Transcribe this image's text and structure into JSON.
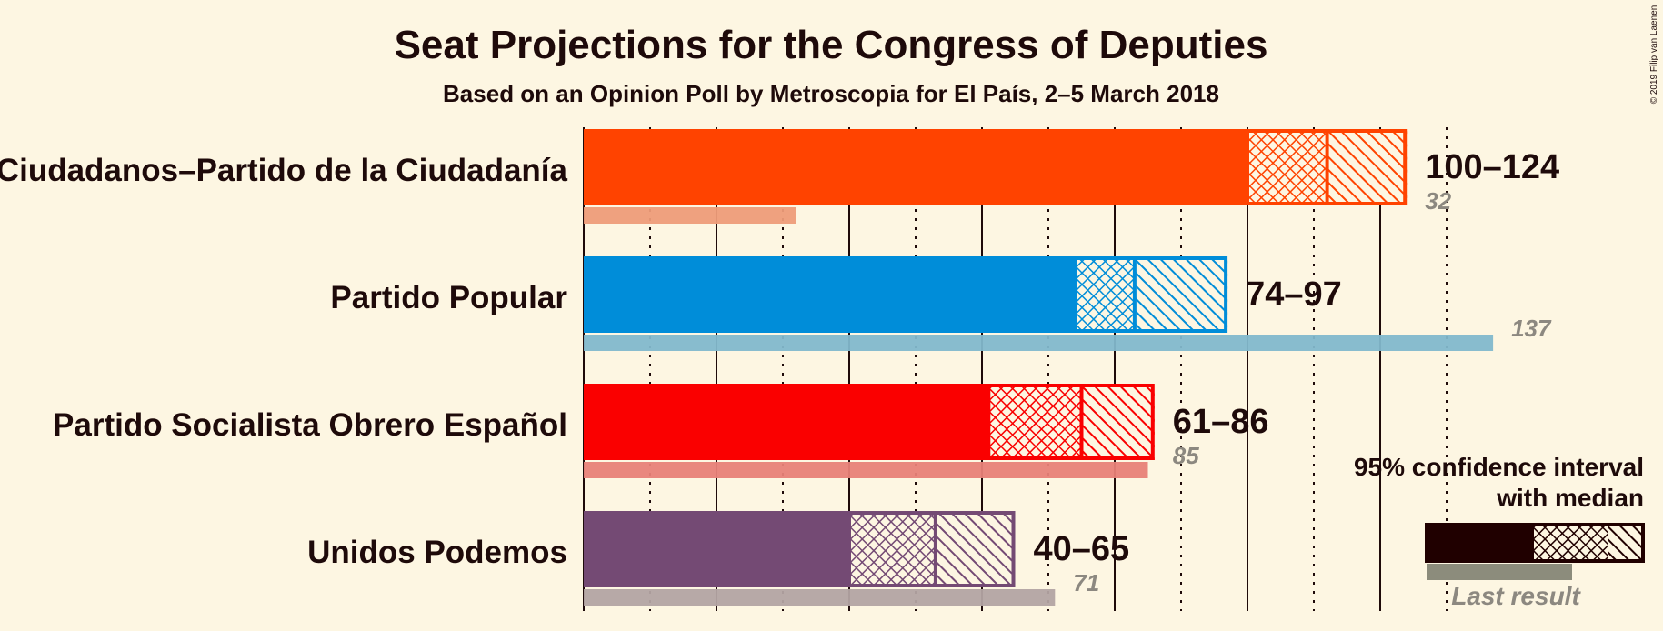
{
  "chart_data": {
    "type": "bar",
    "orientation": "horizontal",
    "title": "Seat Projections for the Congress of Deputies",
    "subtitle": "Based on an Opinion Poll by Metroscopia for El País, 2–5 March 2018",
    "copyright": "© 2019 Filip van Laenen",
    "xlim": [
      0,
      150
    ],
    "major_ticks": [
      0,
      20,
      40,
      60,
      80,
      100,
      120
    ],
    "minor_ticks": [
      10,
      30,
      50,
      70,
      90,
      110,
      130
    ],
    "parties": [
      {
        "name": "Ciudadanos–Partido de la Ciudadanía",
        "low": 100,
        "median": 112,
        "high": 124,
        "range_label": "100–124",
        "last_result": 32,
        "last_label": "32",
        "color": "#FF4300",
        "last_color": "#EE9C79"
      },
      {
        "name": "Partido Popular",
        "low": 74,
        "median": 83,
        "high": 97,
        "range_label": "74–97",
        "last_result": 137,
        "last_label": "137",
        "color": "#008DD9",
        "last_color": "#82B8CC"
      },
      {
        "name": "Partido Socialista Obrero Español",
        "low": 61,
        "median": 75,
        "high": 86,
        "range_label": "61–86",
        "last_result": 85,
        "last_label": "85",
        "color": "#FA0000",
        "last_color": "#E88178"
      },
      {
        "name": "Unidos Podemos",
        "low": 40,
        "median": 53,
        "high": 65,
        "range_label": "40–65",
        "last_result": 71,
        "last_label": "71",
        "color": "#744A74",
        "last_color": "#B3A4A3"
      }
    ],
    "legend": {
      "title_line1": "95% confidence interval",
      "title_line2": "with median",
      "last_result_label": "Last result",
      "color": "#200000",
      "last_color": "#8C8C7C"
    }
  }
}
